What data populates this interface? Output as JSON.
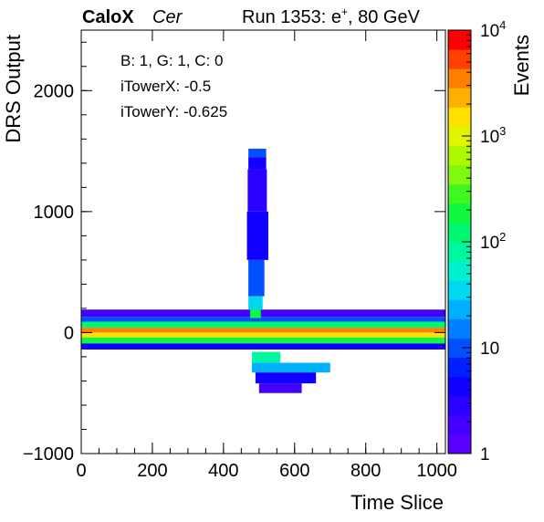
{
  "header": {
    "brand": "CaloX",
    "tag": "Cer",
    "run_prefix": "Run 1353: e",
    "run_sup": "+",
    "run_suffix": ", 80 GeV"
  },
  "stats": {
    "line1": "B: 1, G: 1, C: 0",
    "line2": "iTowerX: -0.5",
    "line3": "iTowerY: -0.625"
  },
  "chart_data": {
    "type": "heatmap",
    "title": "",
    "xlabel": "Time Slice",
    "ylabel": "DRS Output",
    "zlabel": "Events",
    "xlim": [
      0,
      1024
    ],
    "ylim": [
      -1000,
      2500
    ],
    "zlim": [
      1,
      10000
    ],
    "z_log_scale": true,
    "x_ticks": [
      0,
      200,
      400,
      600,
      800,
      1000
    ],
    "y_ticks": [
      -1000,
      0,
      1000,
      2000
    ],
    "z_tick_labels": [
      "1",
      "10",
      "10^2",
      "10^3",
      "10^4"
    ],
    "grid": false,
    "baseline_band": {
      "x_range": [
        0,
        1024
      ],
      "rows": [
        {
          "y": [
            130,
            190
          ],
          "events": 2
        },
        {
          "y": [
            90,
            130
          ],
          "events": 12
        },
        {
          "y": [
            40,
            90
          ],
          "events": 150
        },
        {
          "y": [
            0,
            40
          ],
          "events": 4000
        },
        {
          "y": [
            -40,
            0
          ],
          "events": 1500
        },
        {
          "y": [
            -90,
            -40
          ],
          "events": 200
        },
        {
          "y": [
            -140,
            -90
          ],
          "events": 5
        }
      ]
    },
    "pulse": {
      "peak_x": 500,
      "x_range": [
        460,
        530
      ],
      "y_max": 1520,
      "cells": [
        {
          "x": [
            470,
            520
          ],
          "y": [
            1450,
            1520
          ],
          "events": 12
        },
        {
          "x": [
            470,
            520
          ],
          "y": [
            1350,
            1450
          ],
          "events": 5
        },
        {
          "x": [
            468,
            522
          ],
          "y": [
            1000,
            1350
          ],
          "events": 3
        },
        {
          "x": [
            466,
            526
          ],
          "y": [
            600,
            1000
          ],
          "events": 4
        },
        {
          "x": [
            470,
            515
          ],
          "y": [
            300,
            600
          ],
          "events": 10
        },
        {
          "x": [
            470,
            510
          ],
          "y": [
            190,
            300
          ],
          "events": 30
        },
        {
          "x": [
            475,
            505
          ],
          "y": [
            120,
            190
          ],
          "events": 200
        }
      ]
    },
    "undershoot": {
      "x_range": [
        460,
        760
      ],
      "y_min": -500,
      "cells": [
        {
          "x": [
            480,
            560
          ],
          "y": [
            -160,
            -250
          ],
          "events": 80
        },
        {
          "x": [
            480,
            700
          ],
          "y": [
            -250,
            -330
          ],
          "events": 20
        },
        {
          "x": [
            490,
            660
          ],
          "y": [
            -330,
            -420
          ],
          "events": 5
        },
        {
          "x": [
            500,
            620
          ],
          "y": [
            -420,
            -500
          ],
          "events": 2
        }
      ]
    },
    "palette": [
      "#5a00ff",
      "#4400ff",
      "#2a00ff",
      "#1100ff",
      "#0020ff",
      "#0050ff",
      "#0080ff",
      "#00b0ff",
      "#00d8f0",
      "#00f0d0",
      "#00f7a0",
      "#00f870",
      "#10f840",
      "#40f820",
      "#80f810",
      "#b0f800",
      "#e0f400",
      "#ffe000",
      "#ffb000",
      "#ff8000",
      "#ff4000",
      "#ff0000"
    ]
  }
}
